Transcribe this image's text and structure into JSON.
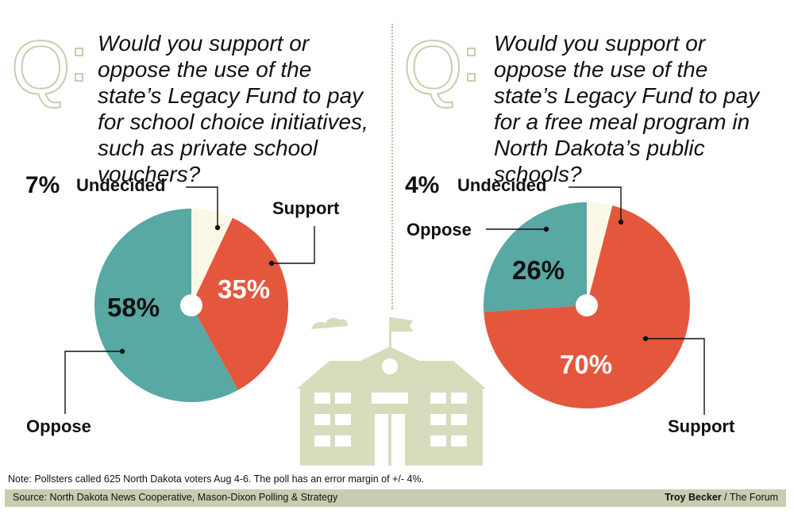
{
  "colors": {
    "support": "#e5573d",
    "oppose": "#58a8a3",
    "undecided": "#fbf8e8",
    "accent": "#c9cdb0"
  },
  "icon": "school-building-icon",
  "q_letter": "Q",
  "chart_data": [
    {
      "type": "pie",
      "question": "Would you support or oppose the use of the state’s Legacy Fund to pay for school choice initiatives, such as private school vouchers?",
      "slices": [
        {
          "label": "Undecided",
          "value": 7,
          "display": "7%"
        },
        {
          "label": "Support",
          "value": 35,
          "display": "35%"
        },
        {
          "label": "Oppose",
          "value": 58,
          "display": "58%"
        }
      ]
    },
    {
      "type": "pie",
      "question": "Would you support or oppose the use of the state’s Legacy Fund to pay for a free meal program in North Dakota’s public schools?",
      "slices": [
        {
          "label": "Undecided",
          "value": 4,
          "display": "4%"
        },
        {
          "label": "Support",
          "value": 70,
          "display": "70%"
        },
        {
          "label": "Oppose",
          "value": 26,
          "display": "26%"
        }
      ]
    }
  ],
  "footer": {
    "note": "Note: Pollsters called 625 North Dakota voters Aug 4-6. The poll has an error margin of +/- 4%.",
    "source": "Source: North Dakota News Cooperative, Mason-Dixon Polling & Strategy",
    "credit_name": "Troy Becker",
    "credit_org": " / The Forum"
  }
}
